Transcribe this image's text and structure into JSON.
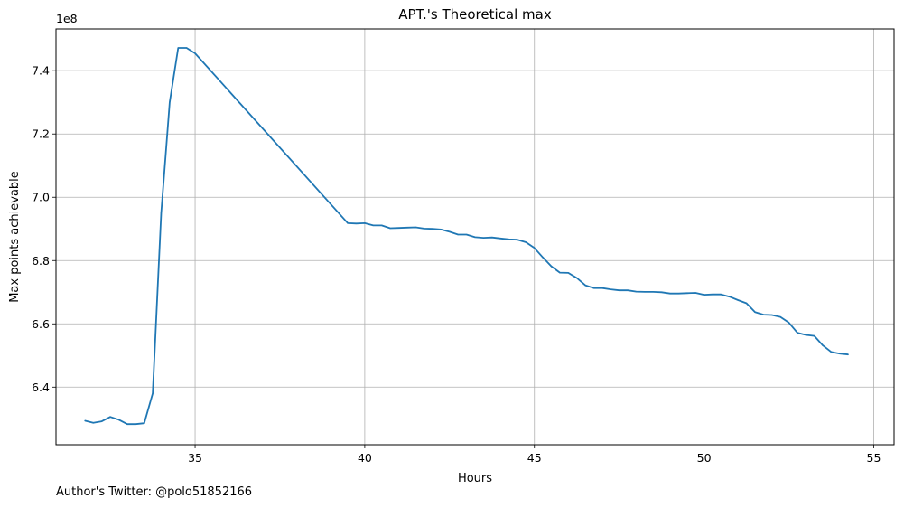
{
  "chart_data": {
    "type": "line",
    "title": "APT.'s Theoretical max",
    "xlabel": "Hours",
    "ylabel": "Max points achievable",
    "offset_label": "1e8",
    "grid": true,
    "xlim": [
      30.9,
      55.6
    ],
    "ylim": [
      6.218,
      7.532
    ],
    "x_ticks": [
      35,
      40,
      45,
      50,
      55
    ],
    "y_ticks": [
      6.4,
      6.6,
      6.8,
      7.0,
      7.2,
      7.4
    ],
    "y_tick_labels": [
      "6.4",
      "6.6",
      "6.8",
      "7.0",
      "7.2",
      "7.4"
    ],
    "series": [
      {
        "color": "#1f77b4",
        "x": [
          31.75,
          32.0,
          32.25,
          32.5,
          32.75,
          33.0,
          33.25,
          33.5,
          33.75,
          34.0,
          34.25,
          34.5,
          34.75,
          35.0,
          39.5,
          39.75,
          40.0,
          40.25,
          40.5,
          40.75,
          41.0,
          41.25,
          41.5,
          41.75,
          42.0,
          42.25,
          42.5,
          42.75,
          43.0,
          43.25,
          43.5,
          43.75,
          44.0,
          44.25,
          44.5,
          44.75,
          45.0,
          45.25,
          45.5,
          45.75,
          46.0,
          46.25,
          46.5,
          46.75,
          47.0,
          47.25,
          47.5,
          47.75,
          48.0,
          48.25,
          48.5,
          48.75,
          49.0,
          49.25,
          49.5,
          49.75,
          50.0,
          50.25,
          50.5,
          50.75,
          51.0,
          51.25,
          51.5,
          51.75,
          52.0,
          52.25,
          52.5,
          52.75,
          53.0,
          53.25,
          53.5,
          53.75,
          54.0,
          54.25
        ],
        "y": [
          6.294,
          6.287,
          6.292,
          6.306,
          6.297,
          6.283,
          6.283,
          6.286,
          6.38,
          6.95,
          7.3,
          7.472,
          7.472,
          7.455,
          6.918,
          6.917,
          6.918,
          6.911,
          6.911,
          6.902,
          6.903,
          6.904,
          6.905,
          6.901,
          6.9,
          6.898,
          6.891,
          6.882,
          6.882,
          6.874,
          6.872,
          6.873,
          6.87,
          6.867,
          6.866,
          6.858,
          6.84,
          6.81,
          6.782,
          6.762,
          6.761,
          6.745,
          6.722,
          6.713,
          6.713,
          6.709,
          6.706,
          6.706,
          6.702,
          6.701,
          6.701,
          6.7,
          6.696,
          6.696,
          6.697,
          6.698,
          6.692,
          6.693,
          6.693,
          6.686,
          6.675,
          6.665,
          6.637,
          6.629,
          6.628,
          6.622,
          6.604,
          6.572,
          6.565,
          6.562,
          6.532,
          6.511,
          6.506,
          6.503
        ]
      }
    ]
  },
  "footer": "Author's Twitter: @polo51852166"
}
